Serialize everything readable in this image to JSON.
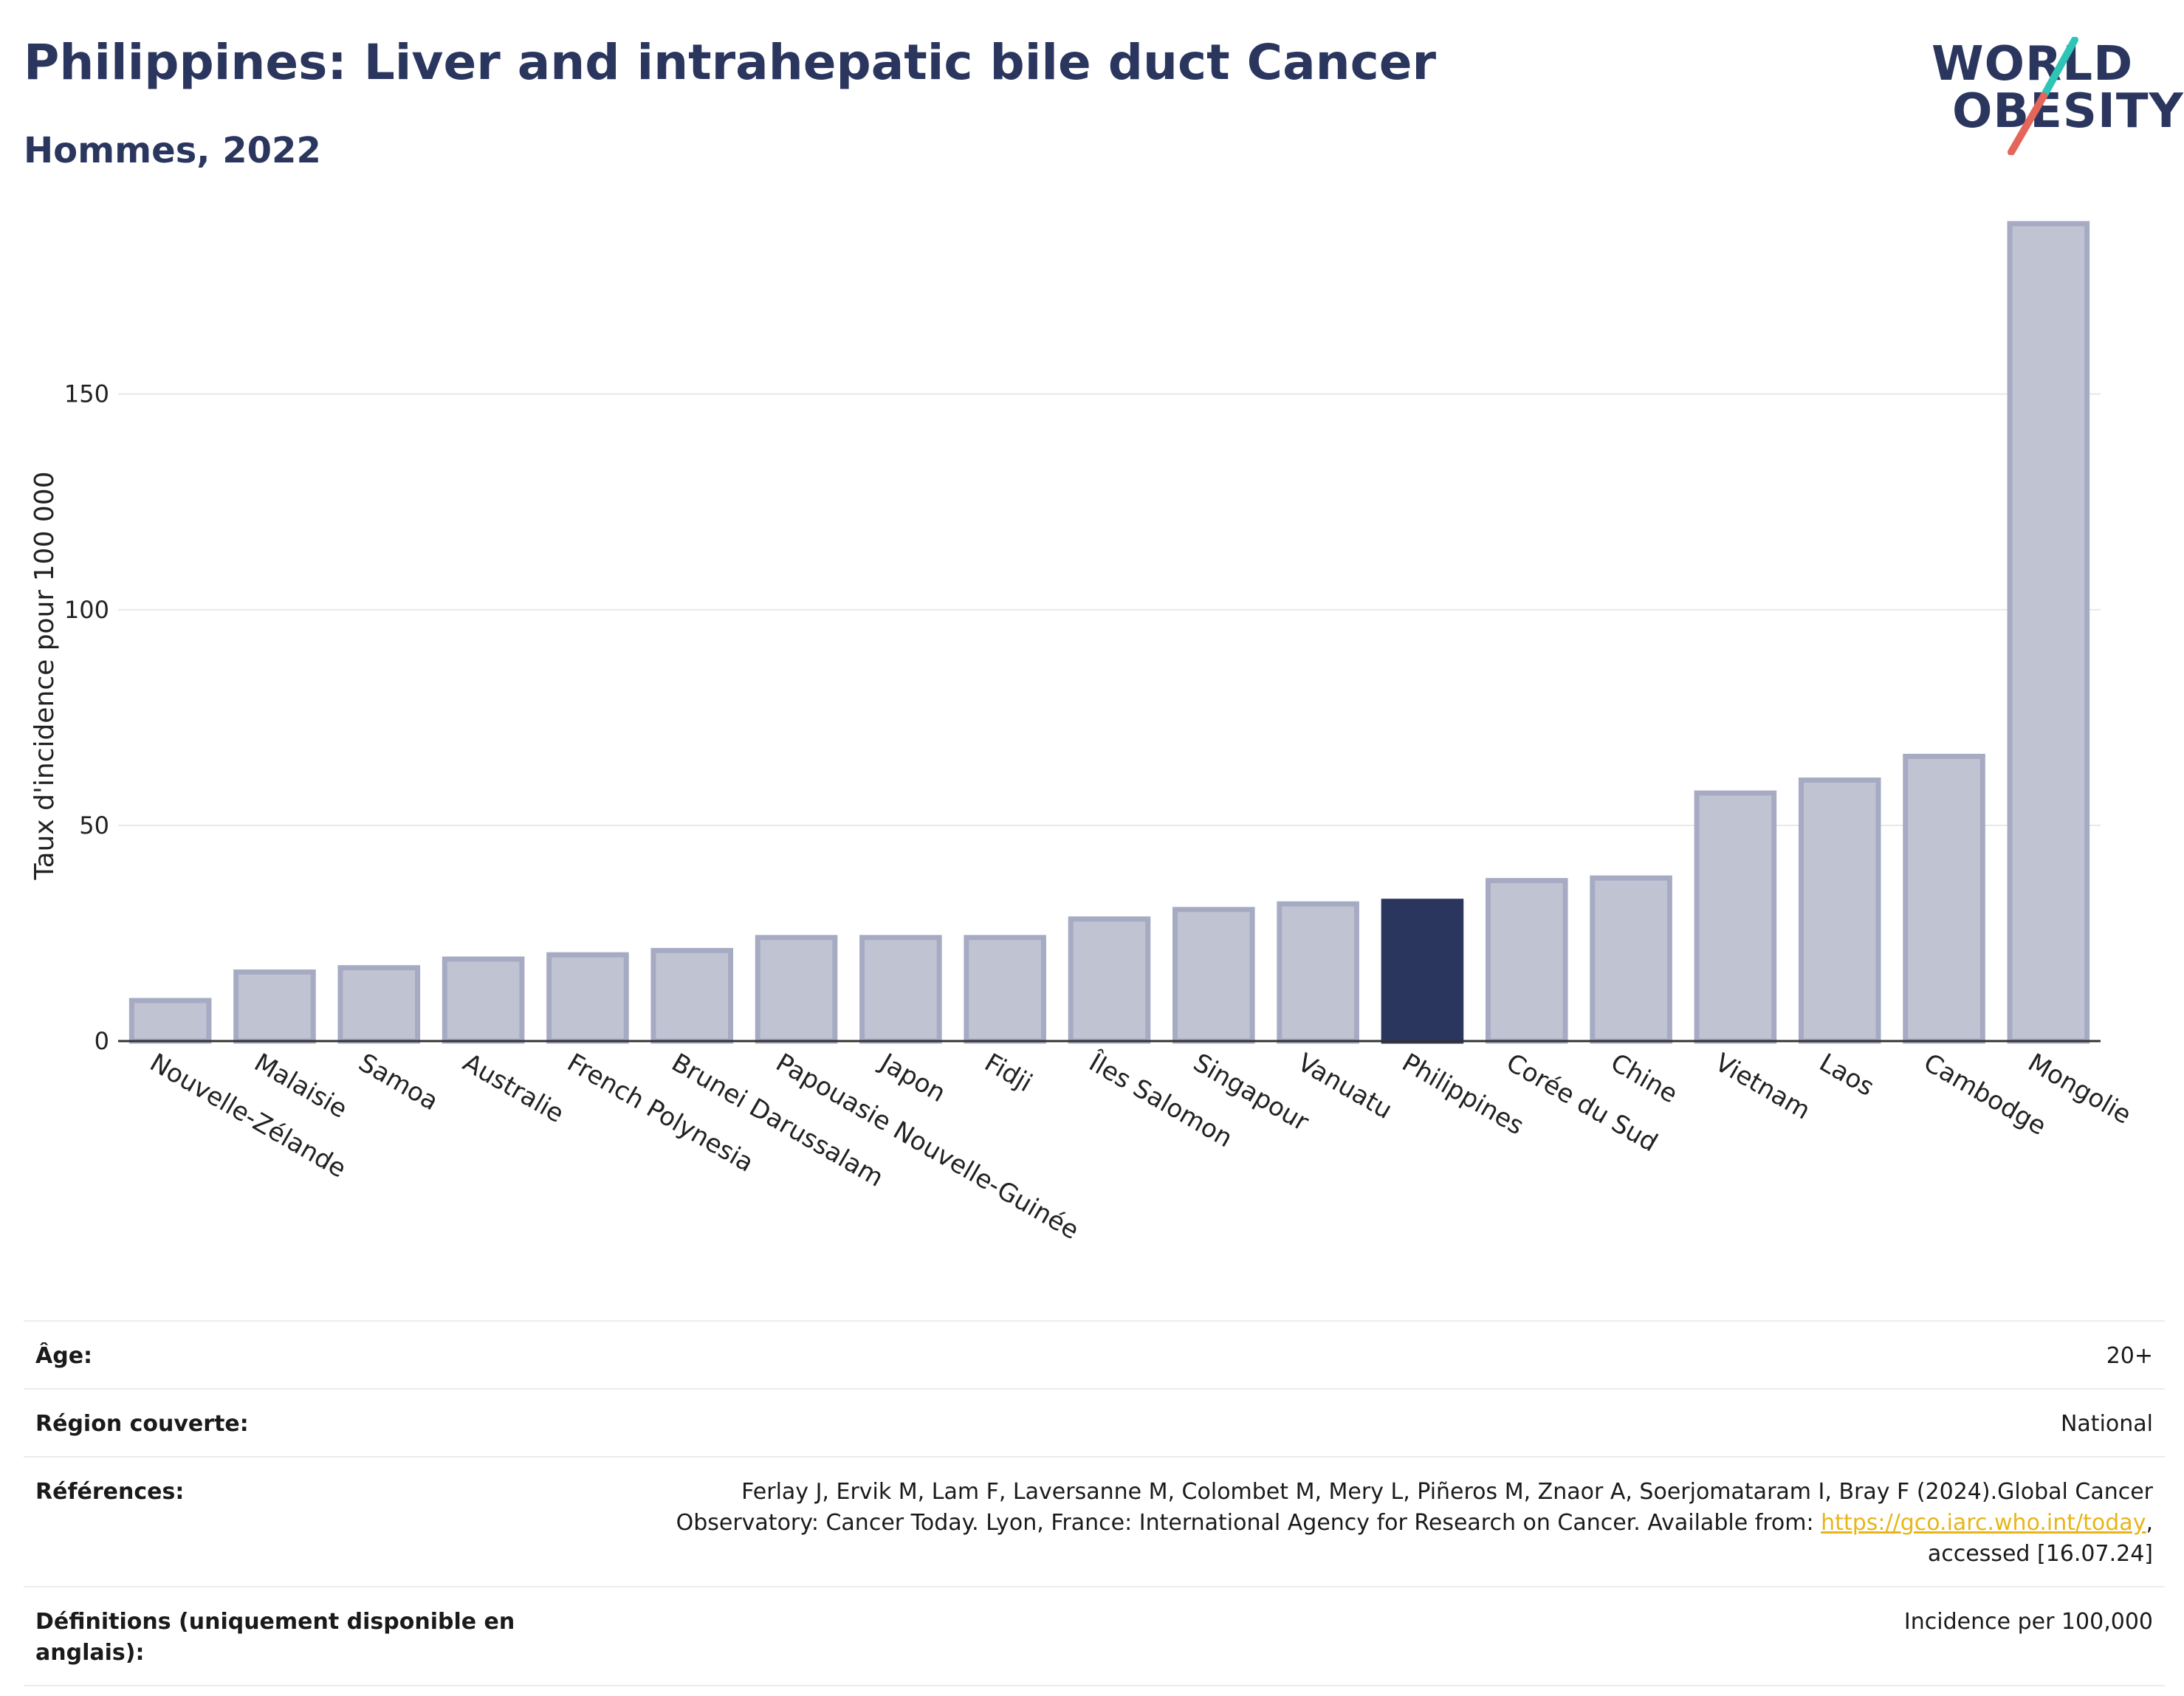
{
  "header": {
    "title": "Philippines: Liver and intrahepatic bile duct Cancer",
    "subtitle": "Hommes, 2022"
  },
  "logo": {
    "line1": "WORLD",
    "line2": "OBESITY",
    "slash_top_color": "#2ec4b6",
    "slash_bottom_color": "#e4655a"
  },
  "chart_data": {
    "type": "bar",
    "title": "Philippines: Liver and intrahepatic bile duct Cancer",
    "subtitle": "Hommes, 2022",
    "ylabel": "Taux d'incidence pour 100 000",
    "xlabel": "",
    "ylim": [
      0,
      190
    ],
    "yticks": [
      0,
      50,
      100,
      150
    ],
    "grid": true,
    "highlight": "Philippines",
    "colors": {
      "bar": "#c0c4d2",
      "bar_border": "#a6abc3",
      "highlight": "#2b365f"
    },
    "categories": [
      "Nouvelle-Zélande",
      "Malaisie",
      "Samoa",
      "Australie",
      "French Polynesia",
      "Brunei Darussalam",
      "Papouasie Nouvelle-Guinée",
      "Japon",
      "Fidji",
      "Îles Salomon",
      "Singapour",
      "Vanuatu",
      "Philippines",
      "Corée du Sud",
      "Chine",
      "Vietnam",
      "Laos",
      "Cambodge",
      "Mongolie"
    ],
    "values": [
      9.4,
      16,
      17,
      19,
      20,
      21,
      24,
      24,
      24,
      28.3,
      30.5,
      31.8,
      32.4,
      37.2,
      37.8,
      57.5,
      60.5,
      66,
      189.5
    ]
  },
  "meta": {
    "age_label": "Âge:",
    "age_value": "20+",
    "region_label": "Région couverte:",
    "region_value": "National",
    "refs_label": "Références:",
    "refs_text_1": "Ferlay J, Ervik M, Lam F, Laversanne M, Colombet M, Mery L, Piñeros M, Znaor A, Soerjomataram I, Bray F (2024).Global Cancer Observatory: Cancer Today. Lyon, France: International Agency for Research on Cancer. Available from: ",
    "refs_link": "https://gco.iarc.who.int/today",
    "refs_text_2": ", accessed [16.07.24]",
    "defs_label": "Définitions (uniquement disponible en anglais):",
    "defs_value": "Incidence per 100,000"
  }
}
